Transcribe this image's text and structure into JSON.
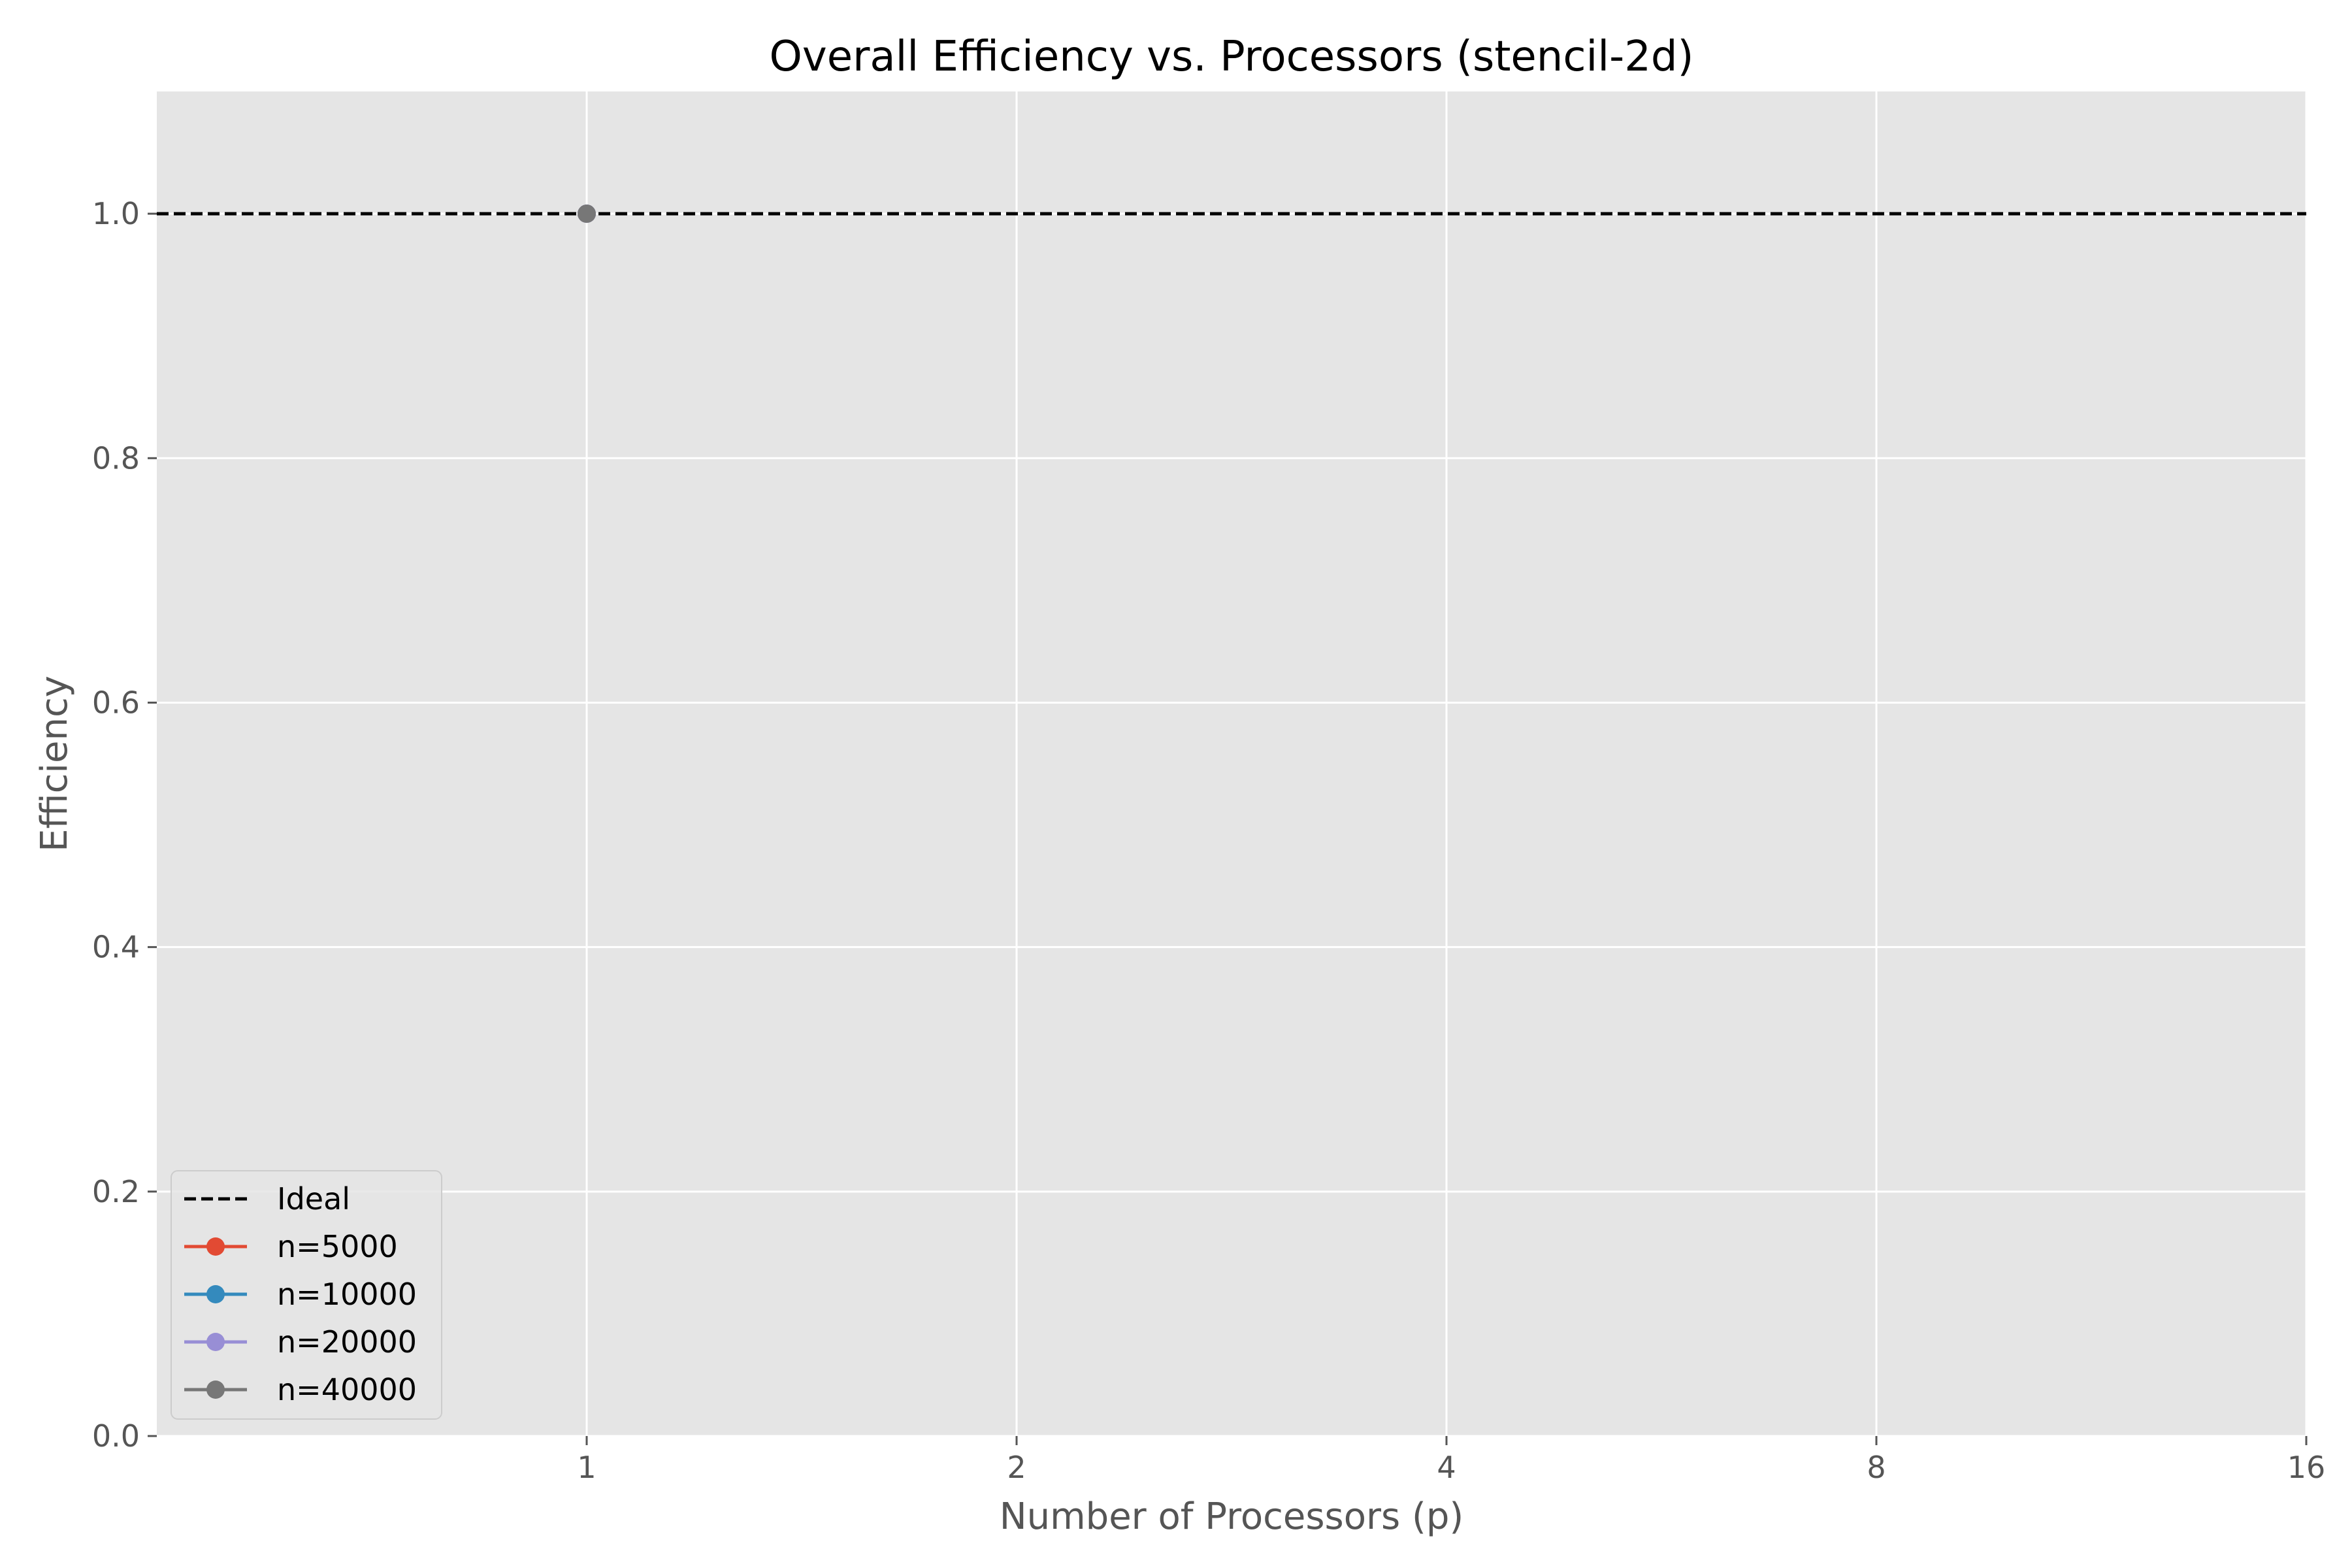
{
  "chart_data": {
    "type": "line",
    "title": "Overall Efficiency vs. Processors (stencil-2d)",
    "xlabel": "Number of Processors (p)",
    "ylabel": "Efficiency",
    "x_scale": "log2",
    "xlim": [
      0.5,
      16
    ],
    "ylim": [
      0.0,
      1.1
    ],
    "x_ticks": [
      1,
      2,
      4,
      8,
      16
    ],
    "x_tick_labels": [
      "1",
      "2",
      "4",
      "8",
      "16"
    ],
    "y_ticks": [
      0.0,
      0.2,
      0.4,
      0.6,
      0.8,
      1.0
    ],
    "y_tick_labels": [
      "0.0",
      "0.2",
      "0.4",
      "0.6",
      "0.8",
      "1.0"
    ],
    "grid": true,
    "legend_position": "lower-left",
    "style": {
      "plot_background": "#e5e5e5",
      "grid_color": "#ffffff"
    },
    "series": [
      {
        "name": "Ideal",
        "x": [
          0.5,
          16
        ],
        "y": [
          1.0,
          1.0
        ],
        "color": "#000000",
        "dashed": true,
        "marker": false
      },
      {
        "name": "n=5000",
        "x": [
          1
        ],
        "y": [
          1.0
        ],
        "color": "#e24a33",
        "dashed": false,
        "marker": true
      },
      {
        "name": "n=10000",
        "x": [
          1
        ],
        "y": [
          1.0
        ],
        "color": "#348abd",
        "dashed": false,
        "marker": true
      },
      {
        "name": "n=20000",
        "x": [
          1
        ],
        "y": [
          1.0
        ],
        "color": "#988ed5",
        "dashed": false,
        "marker": true
      },
      {
        "name": "n=40000",
        "x": [
          1
        ],
        "y": [
          1.0
        ],
        "color": "#777777",
        "dashed": false,
        "marker": true
      }
    ]
  }
}
